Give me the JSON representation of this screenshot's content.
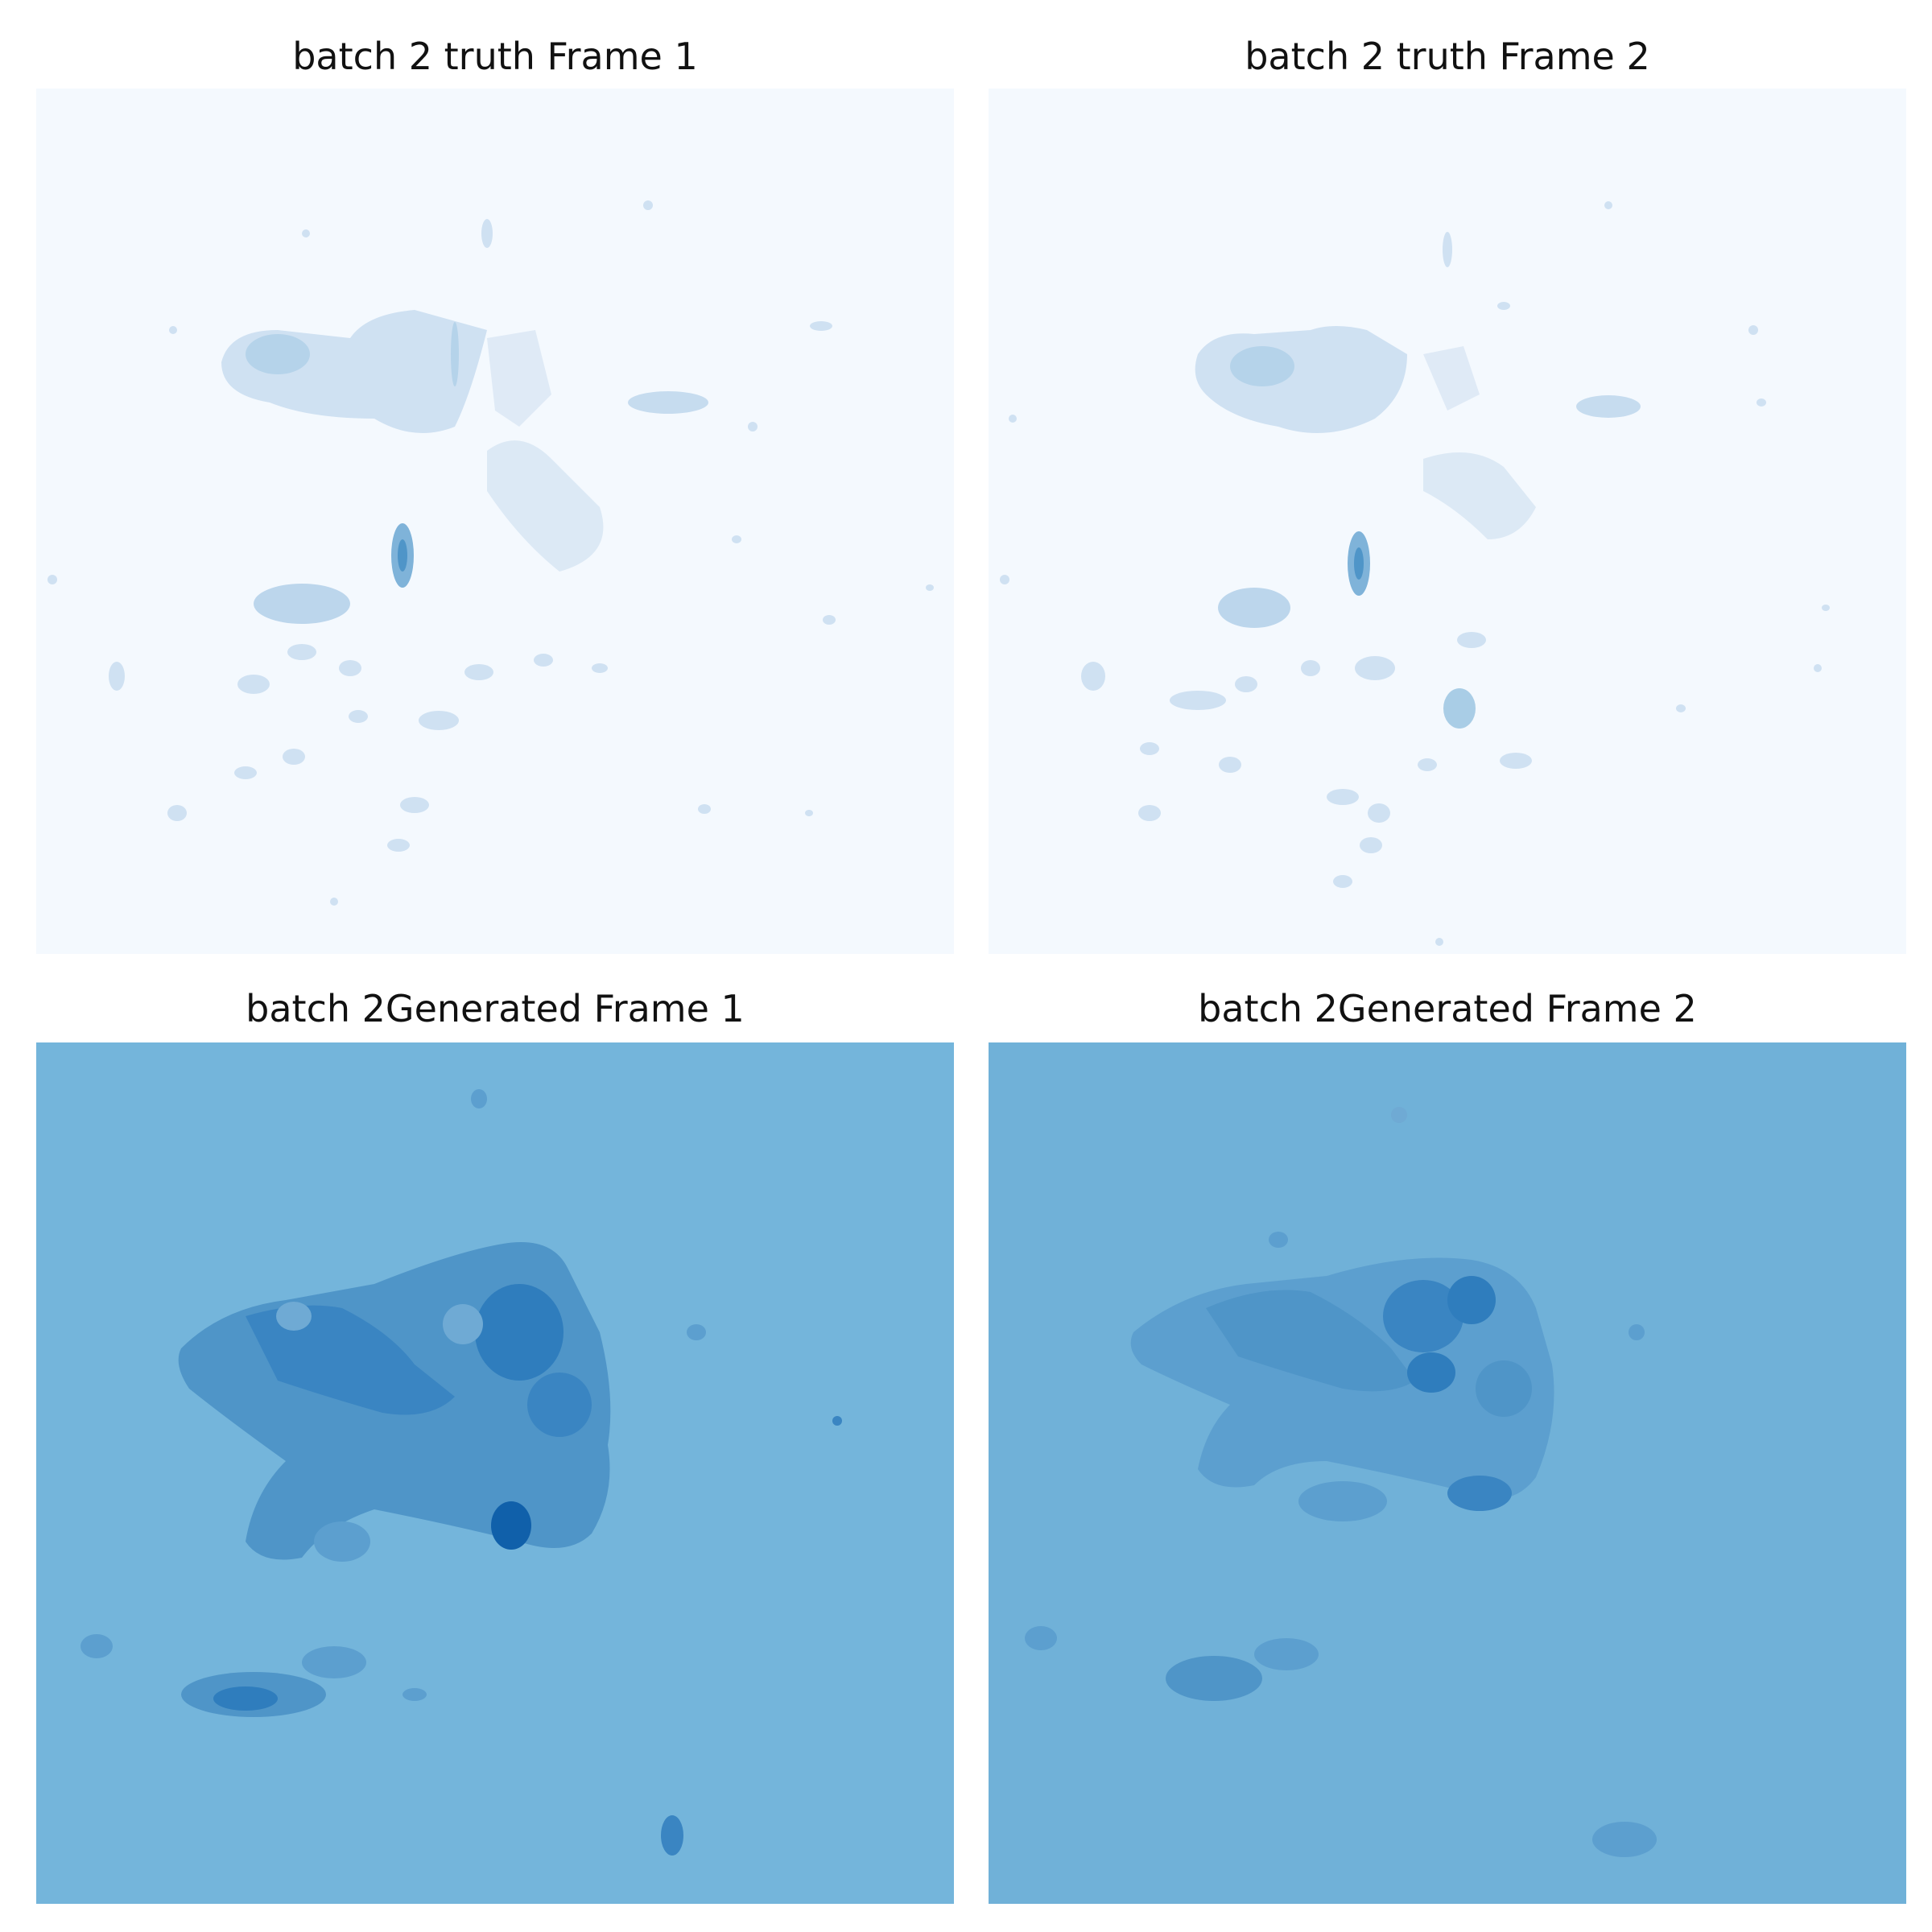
{
  "figure": {
    "panels": [
      {
        "title": "batch 2 truth Frame 1",
        "kind": "truth",
        "frame": 1
      },
      {
        "title": "batch 2 truth Frame 2",
        "kind": "truth",
        "frame": 2
      },
      {
        "title": "batch 2Generated Frame 1",
        "kind": "generated",
        "frame": 1
      },
      {
        "title": "batch 2Generated Frame 2",
        "kind": "generated",
        "frame": 2
      }
    ],
    "colormap": "Blues",
    "colors": {
      "truth_background": "#f4f9fe",
      "truth_light": "#cfe1f2",
      "truth_mid": "#a9cde6",
      "truth_dark": "#4f95c8",
      "generated_background": "#74b5db",
      "generated_dark": "#2f7dbd",
      "generated_darkest": "#1060aa"
    }
  }
}
